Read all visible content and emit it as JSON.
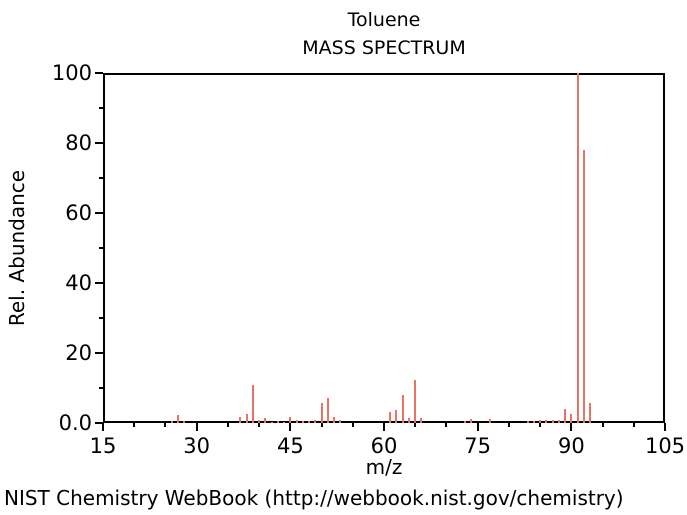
{
  "page": {
    "caption": "NIST Chemistry WebBook (http://webbook.nist.gov/chemistry)"
  },
  "chart_data": {
    "type": "bar",
    "title": "Toluene",
    "subtitle": "MASS SPECTRUM",
    "xlabel": "m/z",
    "ylabel": "Rel. Abundance",
    "xlim": [
      15,
      105
    ],
    "ylim": [
      0,
      100
    ],
    "x_major_ticks": [
      15,
      30,
      45,
      60,
      75,
      90,
      105
    ],
    "x_minor_step": 5,
    "y_major_ticks": [
      0,
      20,
      40,
      60,
      80,
      100
    ],
    "y_tick_labels": [
      "0.0",
      "20",
      "40",
      "60",
      "80",
      "100"
    ],
    "y_minor_step": 10,
    "grid": "off",
    "legend": "none",
    "bar_color": "#e57366",
    "frame_color": "#000000",
    "mz": [
      26,
      27,
      28,
      37,
      38,
      39,
      40,
      41,
      42,
      43,
      44,
      45,
      46,
      47,
      48,
      49,
      50,
      51,
      52,
      53,
      61,
      62,
      63,
      64,
      65,
      66,
      73,
      74,
      77,
      83,
      84,
      85,
      86,
      87,
      88,
      89,
      90,
      91,
      92,
      93
    ],
    "rel_abundance": [
      0.7,
      2.2,
      0.5,
      1.6,
      2.6,
      11,
      1.0,
      1.3,
      0.4,
      0.5,
      0.4,
      1.6,
      0.9,
      0.5,
      0.5,
      1.0,
      5.8,
      7.1,
      1.7,
      0.9,
      3.2,
      3.7,
      8.1,
      1.4,
      12.2,
      1.3,
      0.6,
      1.1,
      1.1,
      0.5,
      0.7,
      1.0,
      0.8,
      1.0,
      0.8,
      4.1,
      2.5,
      100,
      78,
      5.7
    ]
  }
}
